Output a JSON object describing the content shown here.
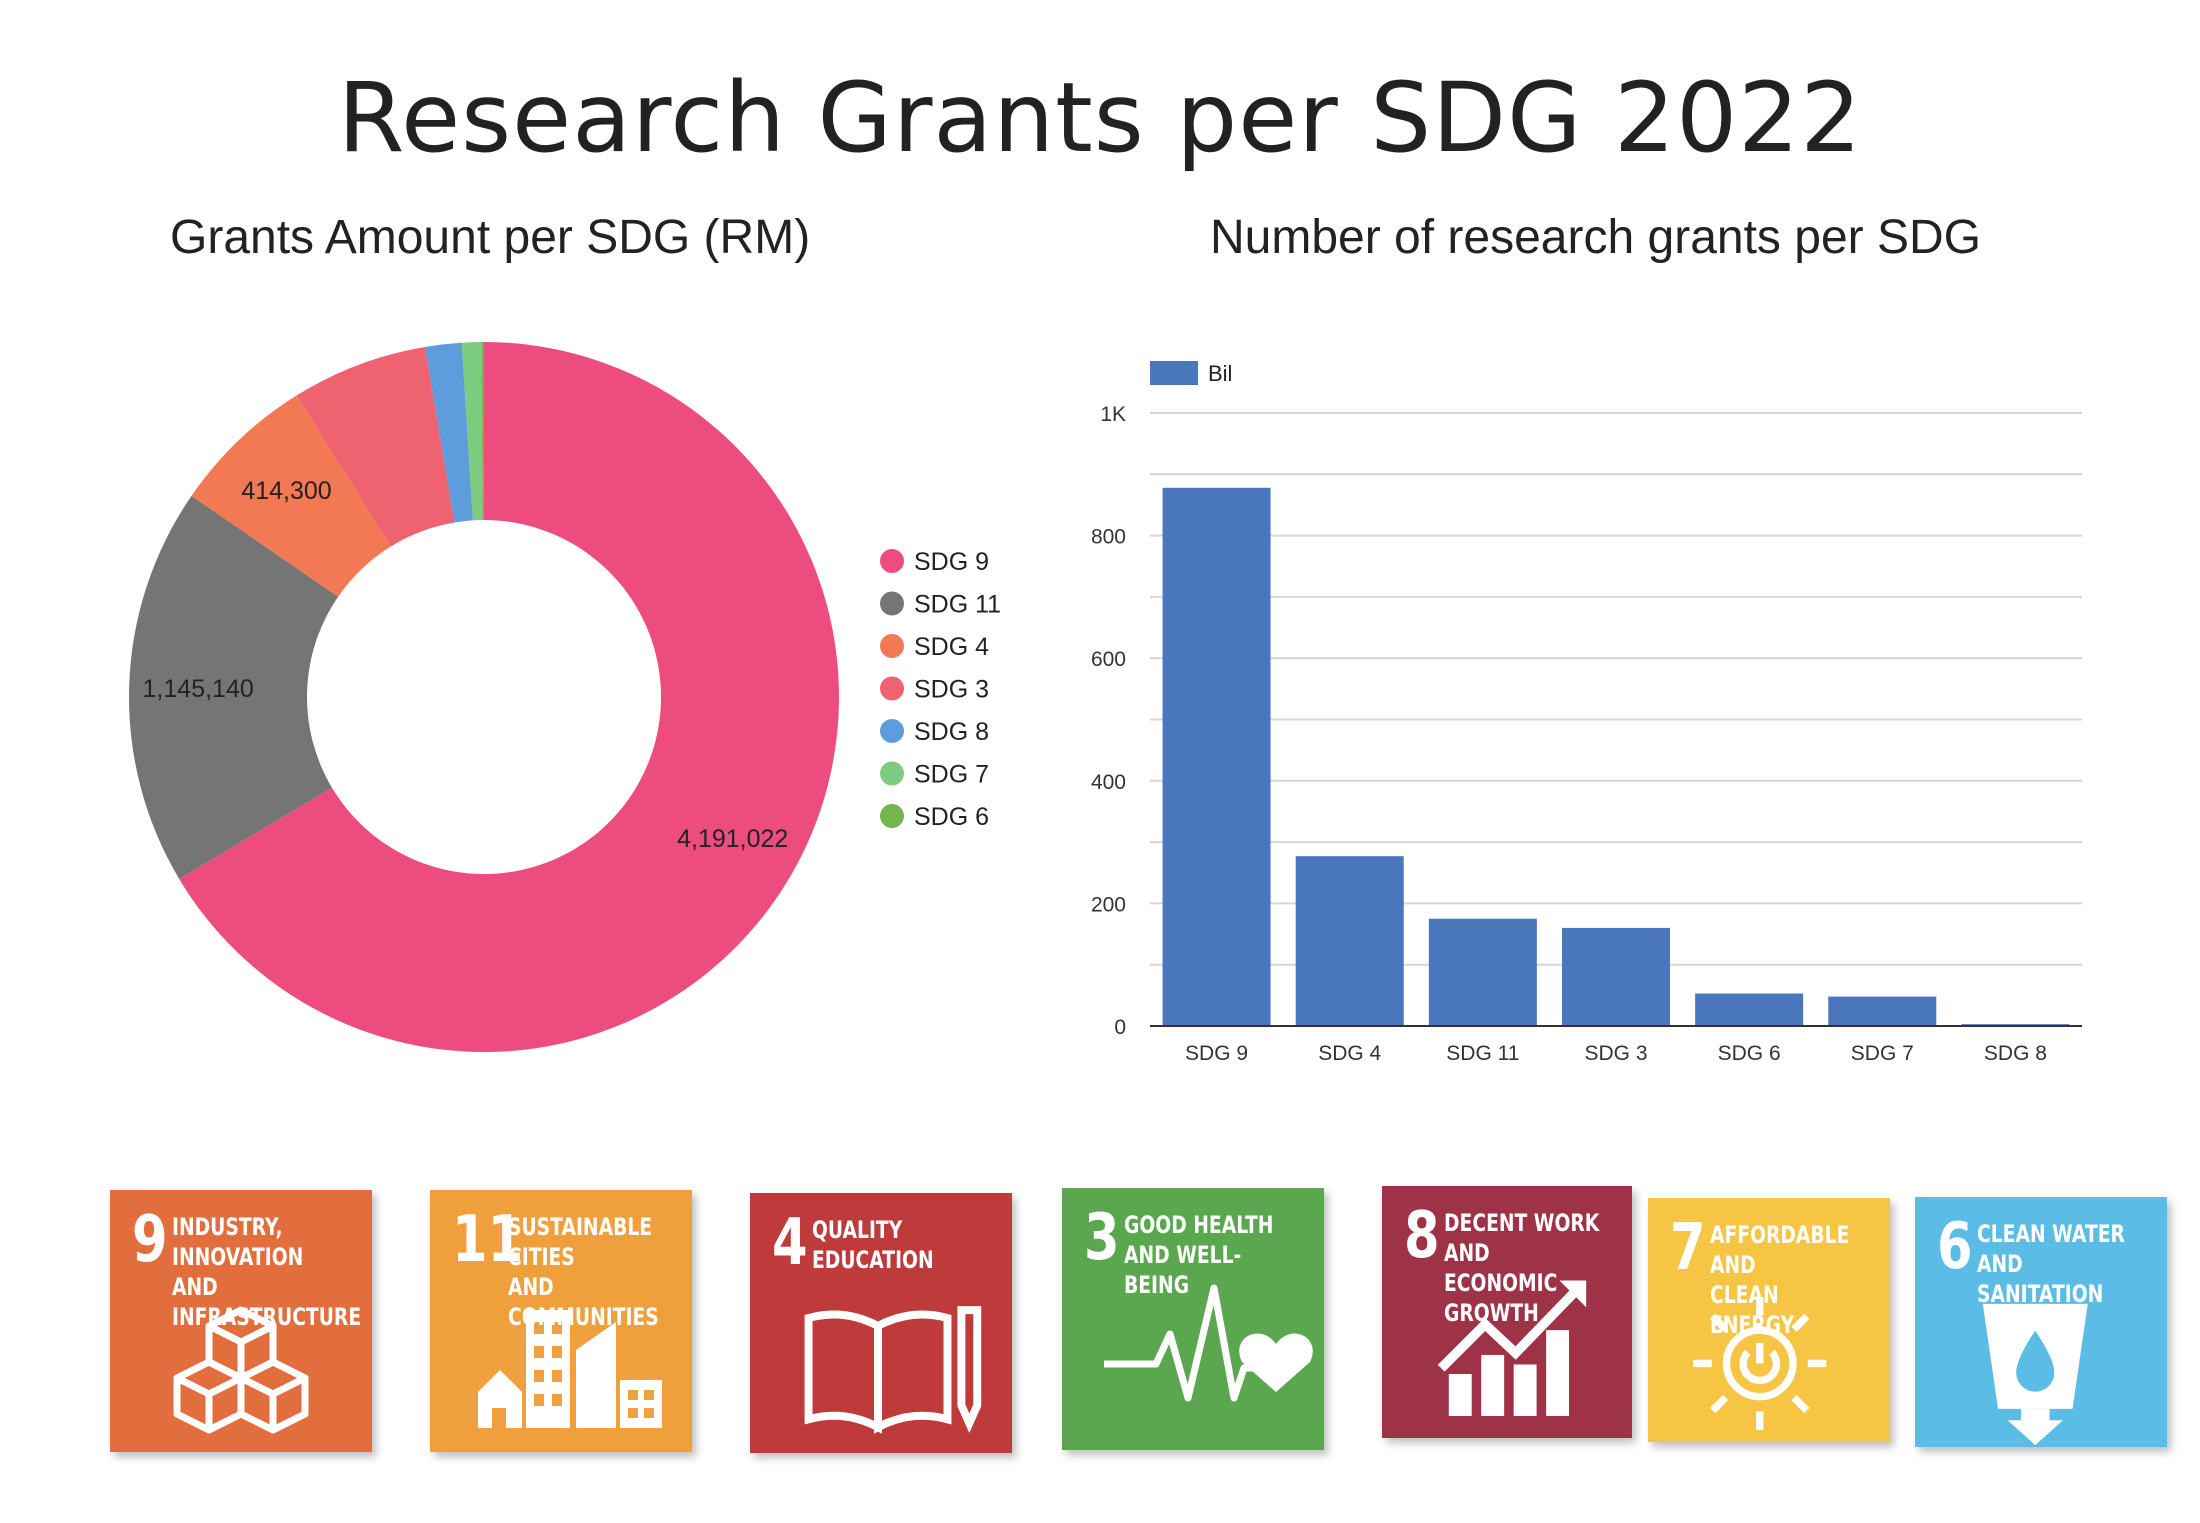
{
  "title": "Research Grants per SDG 2022",
  "chart_data": [
    {
      "type": "pie",
      "title": "Grants Amount per SDG (RM)",
      "donut": true,
      "legend_position": "right",
      "slices": [
        {
          "name": "SDG 9",
          "value": 4191022,
          "label": "4,191,022",
          "color": "#EC4D7E"
        },
        {
          "name": "SDG 11",
          "value": 1145140,
          "label": "1,145,140",
          "color": "#757575"
        },
        {
          "name": "SDG 4",
          "value": 414300,
          "label": "414,300",
          "color": "#F37854"
        },
        {
          "name": "SDG 3",
          "value": 390000,
          "label": "",
          "color": "#EF6370"
        },
        {
          "name": "SDG 8",
          "value": 105000,
          "label": "",
          "color": "#5E9CDB"
        },
        {
          "name": "SDG 7",
          "value": 55000,
          "label": "",
          "color": "#7DCB7E"
        },
        {
          "name": "SDG 6",
          "value": 8000,
          "label": "",
          "color": "#73B54F"
        }
      ]
    },
    {
      "type": "bar",
      "title": "Number of research grants per SDG",
      "categories": [
        "SDG 9",
        "SDG 4",
        "SDG 11",
        "SDG 3",
        "SDG 6",
        "SDG 7",
        "SDG 8"
      ],
      "series": [
        {
          "name": "Bil",
          "values": [
            878,
            277,
            175,
            160,
            53,
            48,
            3
          ],
          "color": "#4A76BC"
        }
      ],
      "ylim": [
        0,
        1000
      ],
      "yticks": [
        0,
        200,
        400,
        600,
        800,
        1000
      ],
      "ytick_labels": [
        "0",
        "200",
        "400",
        "600",
        "800",
        "1K"
      ],
      "grid": true,
      "legend_position": "top-left"
    }
  ],
  "sdg_tiles": [
    {
      "number": "9",
      "label": "INDUSTRY, INNOVATION\nAND INFRASTRUCTURE",
      "color": "#E36E3D",
      "icon": "cubes-icon"
    },
    {
      "number": "11",
      "label": "SUSTAINABLE CITIES\nAND COMMUNITIES",
      "color": "#EFA03C",
      "icon": "city-buildings-icon"
    },
    {
      "number": "4",
      "label": "QUALITY\nEDUCATION",
      "color": "#BF3A3A",
      "icon": "book-pencil-icon"
    },
    {
      "number": "3",
      "label": "GOOD HEALTH\nAND WELL-BEING",
      "color": "#5AA74F",
      "icon": "heartbeat-icon"
    },
    {
      "number": "8",
      "label": "DECENT WORK AND\nECONOMIC GROWTH",
      "color": "#9E3348",
      "icon": "growth-chart-icon"
    },
    {
      "number": "7",
      "label": "AFFORDABLE AND\nCLEAN ENERGY",
      "color": "#F6C543",
      "icon": "sun-power-icon"
    },
    {
      "number": "6",
      "label": "CLEAN WATER\nAND SANITATION",
      "color": "#5BBDE5",
      "icon": "water-glass-icon"
    }
  ]
}
